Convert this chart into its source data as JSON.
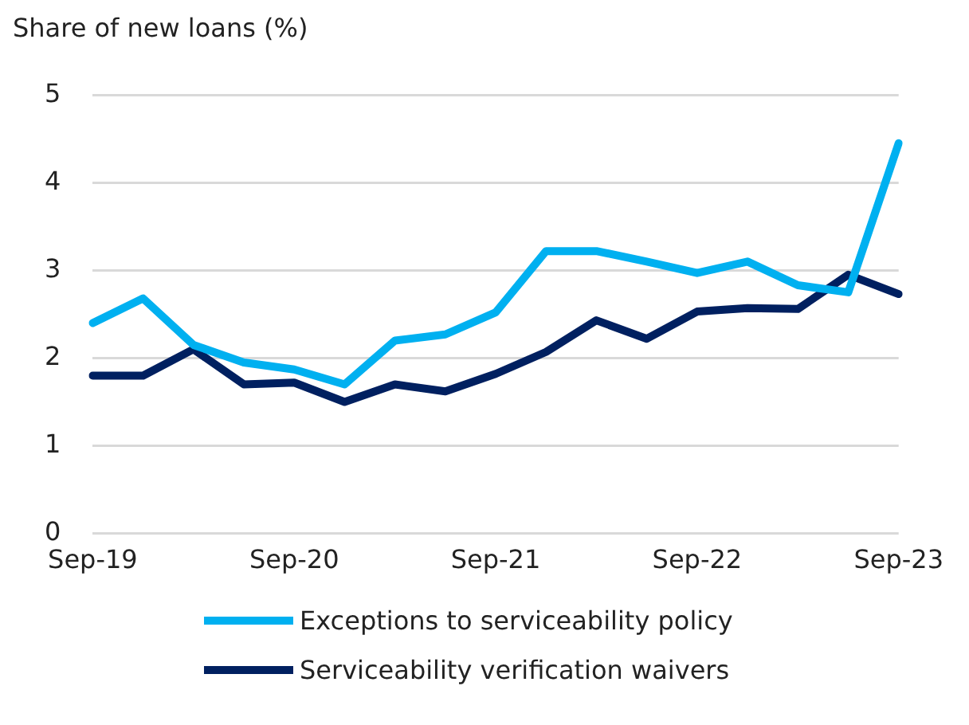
{
  "chart_data": {
    "type": "line",
    "ylabel": "Share of new loans (%)",
    "categories": [
      "Sep-19",
      null,
      null,
      null,
      "Sep-20",
      null,
      null,
      null,
      "Sep-21",
      null,
      null,
      null,
      "Sep-22",
      null,
      null,
      null,
      "Sep-23"
    ],
    "series": [
      {
        "name": "Exceptions to serviceability policy",
        "color": "#00b0f0",
        "values": [
          2.4,
          2.68,
          2.15,
          1.95,
          1.87,
          1.7,
          2.2,
          2.27,
          2.52,
          3.22,
          3.22,
          3.1,
          2.97,
          3.1,
          2.83,
          2.75,
          4.45
        ]
      },
      {
        "name": "Serviceability verification waivers",
        "color": "#002060",
        "values": [
          1.8,
          1.8,
          2.1,
          1.7,
          1.72,
          1.5,
          1.7,
          1.62,
          1.82,
          2.07,
          2.43,
          2.22,
          2.53,
          2.57,
          2.56,
          2.95,
          2.73
        ]
      }
    ],
    "ylim": [
      0,
      5
    ],
    "yticks": [
      0,
      1,
      2,
      3,
      4,
      5
    ],
    "grid": "y",
    "legend": "bottom",
    "marker": "none",
    "line_style": "solid"
  }
}
